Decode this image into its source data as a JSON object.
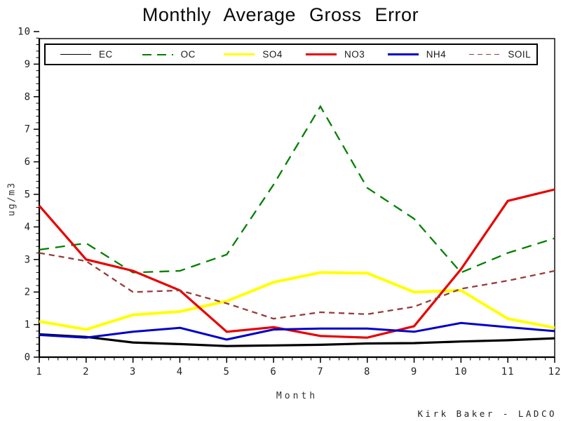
{
  "title": "Monthly Average Gross Error",
  "footer": "Kirk Baker - LADCO",
  "axes": {
    "x_label": "Month",
    "y_label": "ug/m3"
  },
  "legend": [
    {
      "label": "EC",
      "color": "#000000",
      "dash": "none",
      "thickness": 1.5
    },
    {
      "label": "OC",
      "color": "#008000",
      "dash": "long",
      "thickness": 2
    },
    {
      "label": "SO4",
      "color": "#FFFF00",
      "dash": "none",
      "thickness": 3
    },
    {
      "label": "NO3",
      "color": "#E80000",
      "dash": "none",
      "thickness": 2.5
    },
    {
      "label": "NH4",
      "color": "#0000C8",
      "dash": "none",
      "thickness": 2.5
    },
    {
      "label": "SOIL",
      "color": "#963C3C",
      "dash": "short",
      "thickness": 1.5
    }
  ],
  "chart_data": {
    "type": "line",
    "title": "Monthly Average Gross Error",
    "xlabel": "Month",
    "ylabel": "ug/m3",
    "x": [
      1,
      2,
      3,
      4,
      5,
      6,
      7,
      8,
      9,
      10,
      11,
      12
    ],
    "xlim": [
      1,
      12
    ],
    "ylim": [
      0,
      10
    ],
    "y_major_ticks": [
      0,
      1,
      2,
      3,
      4,
      5,
      6,
      7,
      8,
      9,
      10
    ],
    "x_major_ticks": [
      1,
      2,
      3,
      4,
      5,
      6,
      7,
      8,
      9,
      10,
      11,
      12
    ],
    "minor_tick_step": 0.2,
    "grid": false,
    "legend_position": "top-inside-box",
    "series": [
      {
        "name": "EC",
        "color": "#000000",
        "style": "solid",
        "width": 3.2,
        "values": [
          0.7,
          0.62,
          0.45,
          0.4,
          0.34,
          0.36,
          0.38,
          0.42,
          0.43,
          0.48,
          0.52,
          0.58
        ]
      },
      {
        "name": "OC",
        "color": "#008000",
        "style": "dashed-long",
        "width": 2.3,
        "values": [
          3.3,
          3.5,
          2.6,
          2.65,
          3.15,
          5.3,
          7.7,
          5.2,
          4.25,
          2.6,
          3.2,
          3.65
        ]
      },
      {
        "name": "SO4",
        "color": "#FFFF00",
        "style": "solid",
        "width": 4,
        "values": [
          1.1,
          0.85,
          1.3,
          1.4,
          1.72,
          2.3,
          2.6,
          2.58,
          2.0,
          2.05,
          1.18,
          0.9
        ]
      },
      {
        "name": "NO3",
        "color": "#E80000",
        "style": "solid",
        "width": 3.2,
        "values": [
          4.65,
          3.0,
          2.65,
          2.05,
          0.78,
          0.92,
          0.65,
          0.6,
          0.95,
          2.7,
          4.8,
          5.15
        ]
      },
      {
        "name": "NH4",
        "color": "#0000C8",
        "style": "solid",
        "width": 3,
        "values": [
          0.68,
          0.6,
          0.78,
          0.9,
          0.54,
          0.85,
          0.88,
          0.88,
          0.78,
          1.05,
          0.92,
          0.8
        ]
      },
      {
        "name": "SOIL",
        "color": "#963C3C",
        "style": "dashed-short",
        "width": 2.3,
        "values": [
          3.2,
          2.95,
          2.0,
          2.05,
          1.65,
          1.18,
          1.38,
          1.32,
          1.55,
          2.1,
          2.35,
          2.65
        ]
      }
    ]
  }
}
